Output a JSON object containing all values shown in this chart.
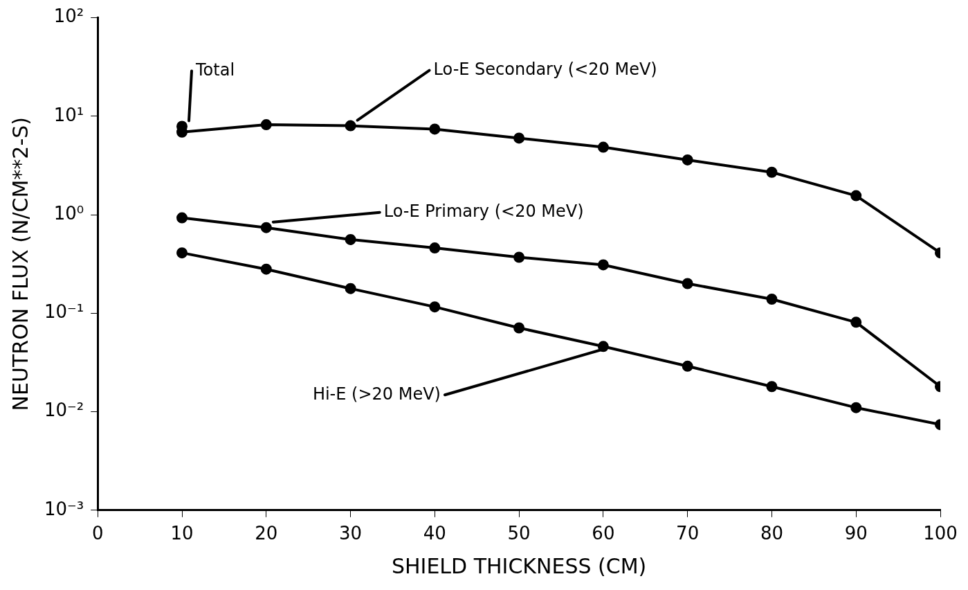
{
  "chart_data": {
    "type": "line",
    "xlabel": "SHIELD THICKNESS (CM)",
    "ylabel": "NEUTRON FLUX (N/CM**2-S)",
    "xlim": [
      0,
      100
    ],
    "xticks": [
      0,
      10,
      20,
      30,
      40,
      50,
      60,
      70,
      80,
      90,
      100
    ],
    "ylim": [
      0.001,
      100
    ],
    "yticks": [
      {
        "value": 0.001,
        "label": "10⁻³"
      },
      {
        "value": 0.01,
        "label": "10⁻²"
      },
      {
        "value": 0.1,
        "label": "10⁻¹"
      },
      {
        "value": 1,
        "label": "10⁰"
      },
      {
        "value": 10,
        "label": "10¹"
      },
      {
        "value": 100,
        "label": "10²"
      }
    ],
    "log": "y",
    "grid": false,
    "legend": false,
    "marker": "circle",
    "line_style": "solid",
    "series": [
      {
        "name": "Total",
        "type": "scatter",
        "color": "#000000",
        "x": [
          10
        ],
        "values": [
          7.9
        ]
      },
      {
        "name": "Lo-E Secondary (<20 MeV)",
        "color": "#000000",
        "x": [
          10,
          20,
          30,
          40,
          50,
          60,
          70,
          80,
          90,
          100
        ],
        "values": [
          6.9,
          8.2,
          8.0,
          7.4,
          6.0,
          4.85,
          3.6,
          2.7,
          1.56,
          0.41
        ]
      },
      {
        "name": "Lo-E Primary (<20 MeV)",
        "color": "#000000",
        "x": [
          10,
          20,
          30,
          40,
          50,
          60,
          70,
          80,
          90,
          100
        ],
        "values": [
          0.93,
          0.74,
          0.56,
          0.46,
          0.37,
          0.31,
          0.2,
          0.139,
          0.081,
          0.018
        ]
      },
      {
        "name": "Hi-E (>20 MeV)",
        "color": "#000000",
        "x": [
          10,
          20,
          30,
          40,
          50,
          60,
          70,
          80,
          90,
          100
        ],
        "values": [
          0.41,
          0.28,
          0.178,
          0.116,
          0.071,
          0.046,
          0.029,
          0.018,
          0.011,
          0.0074
        ]
      }
    ]
  }
}
